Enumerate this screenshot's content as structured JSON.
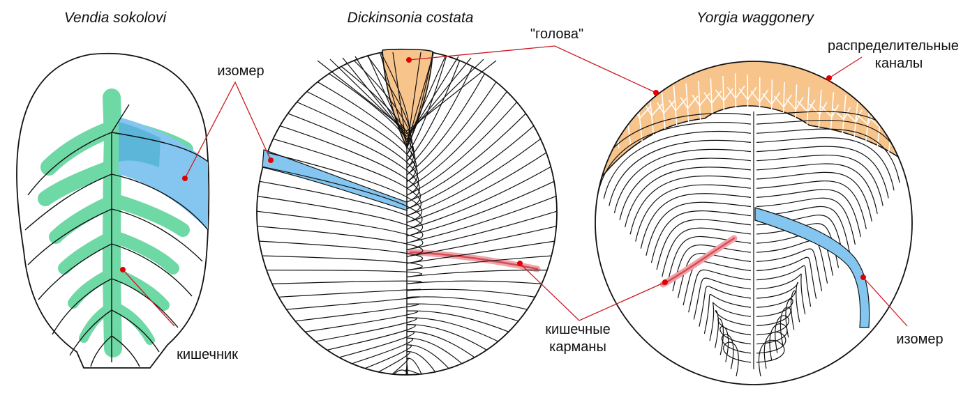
{
  "titles": {
    "vendia": "Vendia sokolovi",
    "dickinsonia": "Dickinsonia costata",
    "yorgia": "Yorgia waggonery"
  },
  "labels": {
    "isomer_vendia": "изомер",
    "intestine": "кишечник",
    "head": "\"голова\"",
    "distributive_line1": "распределительные",
    "distributive_line2": "каналы",
    "gut_pockets_line1": "кишечные",
    "gut_pockets_line2": "карманы",
    "isomer_yorgia": "изомер"
  },
  "colors": {
    "outline": "#111111",
    "gut_green": "#6fd9a6",
    "isomer_blue": "#84c6f0",
    "isomer_blue_dark": "#3aa9c8",
    "head_orange": "#f7c48c",
    "pocket_red": "#d94a52",
    "pocket_pink": "#eea3aa",
    "pointer_red": "#cc1a22",
    "dot_red": "#e00000"
  }
}
